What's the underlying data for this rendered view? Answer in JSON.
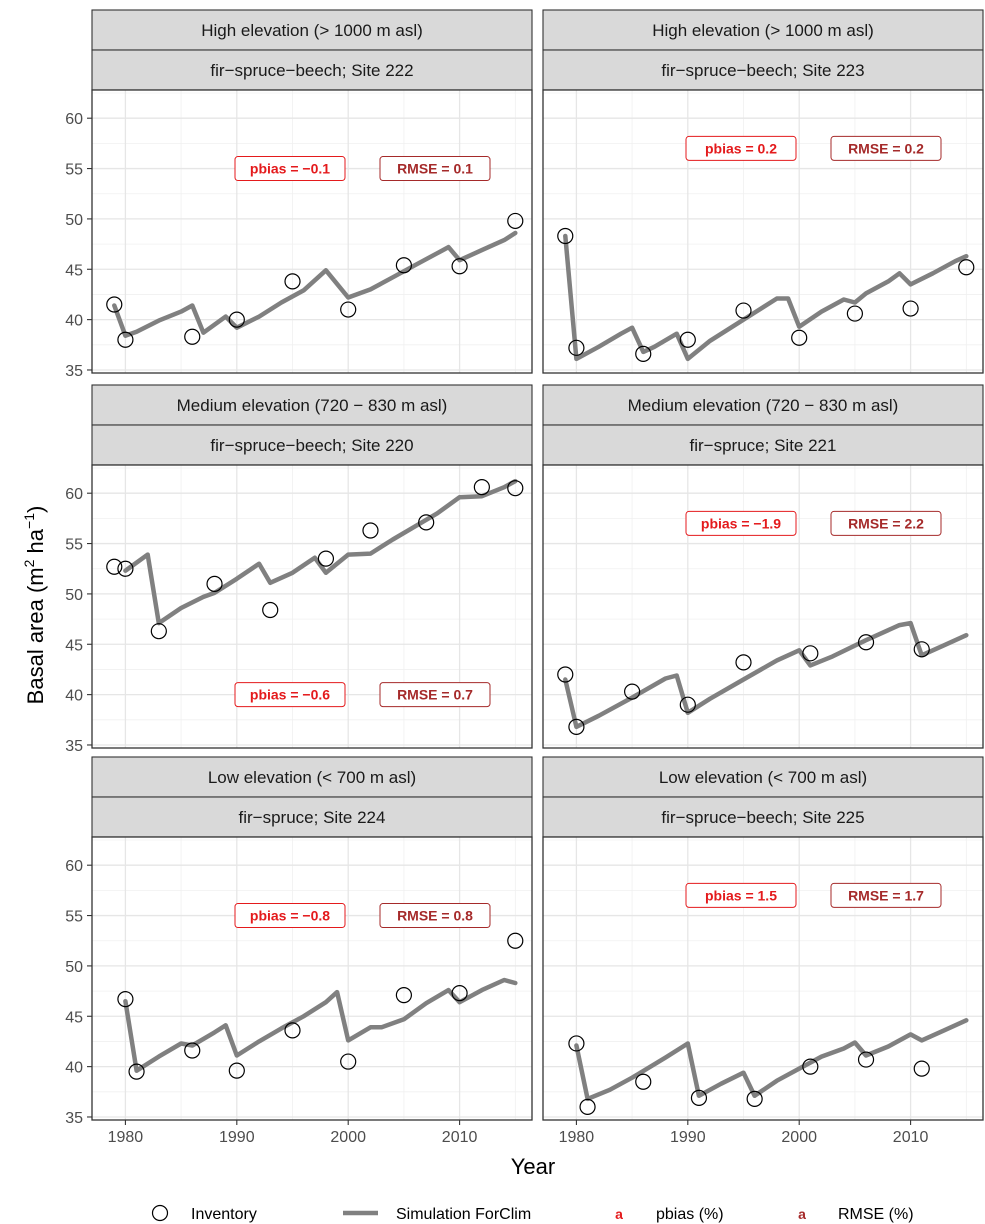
{
  "chart_data": {
    "type": "line",
    "xlabel": "Year",
    "ylabel_main": "Basal area",
    "ylabel_unit": {
      "open": "(m",
      "sup1": "2",
      "mid": " ha",
      "sup2": "−1",
      "close": ")"
    },
    "xlim": [
      1977,
      2016.5
    ],
    "ylim": [
      34.7,
      62.8
    ],
    "x_ticks": [
      1980,
      1990,
      2000,
      2010
    ],
    "y_ticks": [
      35,
      40,
      45,
      50,
      55,
      60
    ],
    "grid": true,
    "colors": {
      "pbias": "#e41a1c",
      "rmse": "#a52a2a",
      "simulation": "#808080",
      "strip_bg": "#d9d9d9"
    },
    "legend": {
      "position": "bottom",
      "inventory": "Inventory",
      "simulation": "Simulation ForClim",
      "key_letter": "a",
      "pbias": "pbias (%)",
      "rmse": "RMSE (%)"
    },
    "panels": [
      {
        "strip_top": "High elevation (> 1000 m asl)",
        "strip_bottom": "fir−spruce−beech; Site 222",
        "pbias_label": "pbias = −0.1",
        "rmse_label": "RMSE = 0.1",
        "label_y": 55,
        "inventory": {
          "x": [
            1979,
            1980,
            1986,
            1990,
            1995,
            2000,
            2005,
            2010,
            2015
          ],
          "y": [
            41.5,
            38.0,
            38.3,
            40.0,
            43.8,
            41.0,
            45.4,
            45.3,
            49.8
          ]
        },
        "simulation": {
          "x": [
            1979,
            1980,
            1981,
            1983,
            1985,
            1986,
            1987,
            1989,
            1990,
            1992,
            1994,
            1996,
            1998,
            2000,
            2002,
            2004,
            2006,
            2008,
            2009,
            2010,
            2012,
            2014,
            2015
          ],
          "y": [
            41.4,
            38.4,
            38.8,
            39.9,
            40.8,
            41.4,
            38.7,
            40.3,
            39.2,
            40.3,
            41.7,
            42.9,
            44.9,
            42.2,
            43.0,
            44.2,
            45.4,
            46.6,
            47.2,
            45.9,
            46.9,
            47.9,
            48.6
          ]
        }
      },
      {
        "strip_top": "High elevation (> 1000 m asl)",
        "strip_bottom": "fir−spruce−beech; Site 223",
        "pbias_label": "pbias = 0.2",
        "rmse_label": "RMSE = 0.2",
        "label_y": 57,
        "inventory": {
          "x": [
            1979,
            1980,
            1986,
            1990,
            1995,
            2000,
            2005,
            2010,
            2015
          ],
          "y": [
            48.3,
            37.2,
            36.6,
            38.0,
            40.9,
            38.2,
            40.6,
            41.1,
            45.2
          ]
        },
        "simulation": {
          "x": [
            1979,
            1980,
            1982,
            1984,
            1985,
            1986,
            1987,
            1989,
            1990,
            1992,
            1994,
            1996,
            1998,
            1999,
            2000,
            2002,
            2004,
            2005,
            2006,
            2008,
            2009,
            2010,
            2012,
            2014,
            2015
          ],
          "y": [
            48.3,
            36.1,
            37.3,
            38.6,
            39.2,
            36.8,
            37.3,
            38.6,
            36.1,
            37.9,
            39.3,
            40.7,
            42.1,
            42.1,
            39.3,
            40.8,
            42.0,
            41.7,
            42.6,
            43.8,
            44.6,
            43.5,
            44.6,
            45.8,
            46.3
          ]
        }
      },
      {
        "strip_top": "Medium elevation (720 − 830 m asl)",
        "strip_bottom": "fir−spruce−beech; Site 220",
        "pbias_label": "pbias = −0.6",
        "rmse_label": "RMSE = 0.7",
        "label_y": 40,
        "inventory": {
          "x": [
            1979,
            1980,
            1983,
            1988,
            1993,
            1998,
            2002,
            2007,
            2012,
            2015
          ],
          "y": [
            52.7,
            52.5,
            46.3,
            51.0,
            48.4,
            53.5,
            56.3,
            57.1,
            60.6,
            60.5
          ]
        },
        "simulation": {
          "x": [
            1980,
            1982,
            1983,
            1985,
            1987,
            1988,
            1990,
            1992,
            1993,
            1995,
            1997,
            1998,
            2000,
            2002,
            2004,
            2006,
            2008,
            2010,
            2012,
            2014,
            2015
          ],
          "y": [
            52.3,
            53.9,
            47.1,
            48.6,
            49.7,
            50.1,
            51.5,
            53.0,
            51.1,
            52.1,
            53.6,
            52.1,
            53.9,
            54.0,
            55.4,
            56.7,
            58.0,
            59.6,
            59.7,
            60.6,
            61.2
          ]
        }
      },
      {
        "strip_top": "Medium elevation (720 − 830 m asl)",
        "strip_bottom": "fir−spruce; Site 221",
        "pbias_label": "pbias = −1.9",
        "rmse_label": "RMSE = 2.2",
        "label_y": 57,
        "inventory": {
          "x": [
            1979,
            1980,
            1985,
            1990,
            1995,
            2001,
            2006,
            2011
          ],
          "y": [
            42.0,
            36.8,
            40.3,
            39.0,
            43.2,
            44.1,
            45.2,
            44.5
          ]
        },
        "simulation": {
          "x": [
            1979,
            1980,
            1982,
            1985,
            1988,
            1989,
            1990,
            1992,
            1995,
            1998,
            2000,
            2001,
            2003,
            2006,
            2009,
            2010,
            2011,
            2013,
            2015
          ],
          "y": [
            41.5,
            36.8,
            37.9,
            39.7,
            41.6,
            41.9,
            38.2,
            39.6,
            41.5,
            43.4,
            44.4,
            42.9,
            43.8,
            45.4,
            46.9,
            47.1,
            43.9,
            44.9,
            45.9
          ]
        }
      },
      {
        "strip_top": "Low elevation (< 700 m asl)",
        "strip_bottom": "fir−spruce; Site 224",
        "pbias_label": "pbias = −0.8",
        "rmse_label": "RMSE = 0.8",
        "label_y": 55,
        "inventory": {
          "x": [
            1980,
            1981,
            1986,
            1990,
            1995,
            2000,
            2005,
            2010,
            2015
          ],
          "y": [
            46.7,
            39.5,
            41.6,
            39.6,
            43.6,
            40.5,
            47.1,
            47.3,
            52.5
          ]
        },
        "simulation": {
          "x": [
            1980,
            1981,
            1983,
            1985,
            1986,
            1988,
            1989,
            1990,
            1992,
            1994,
            1996,
            1998,
            1999,
            2000,
            2002,
            2003,
            2005,
            2007,
            2009,
            2010,
            2012,
            2014,
            2015
          ],
          "y": [
            46.5,
            39.6,
            41.0,
            42.3,
            42.1,
            43.4,
            44.1,
            41.1,
            42.5,
            43.8,
            45.0,
            46.4,
            47.4,
            42.6,
            43.9,
            43.9,
            44.7,
            46.3,
            47.6,
            46.4,
            47.6,
            48.6,
            48.3
          ]
        }
      },
      {
        "strip_top": "Low elevation (< 700 m asl)",
        "strip_bottom": "fir−spruce−beech; Site 225",
        "pbias_label": "pbias = 1.5",
        "rmse_label": "RMSE = 1.7",
        "label_y": 57,
        "inventory": {
          "x": [
            1980,
            1981,
            1986,
            1991,
            1996,
            2001,
            2006,
            2011
          ],
          "y": [
            42.3,
            36.0,
            38.5,
            36.9,
            36.8,
            40.0,
            40.7,
            39.8
          ]
        },
        "simulation": {
          "x": [
            1980,
            1981,
            1983,
            1985,
            1988,
            1990,
            1991,
            1993,
            1995,
            1996,
            1998,
            2000,
            2002,
            2004,
            2005,
            2006,
            2008,
            2010,
            2011,
            2013,
            2015
          ],
          "y": [
            42.1,
            36.8,
            37.7,
            38.9,
            40.9,
            42.3,
            37.1,
            38.3,
            39.4,
            37.1,
            38.6,
            39.8,
            41.0,
            41.8,
            42.4,
            41.1,
            42.0,
            43.2,
            42.6,
            43.6,
            44.6
          ]
        }
      }
    ]
  }
}
